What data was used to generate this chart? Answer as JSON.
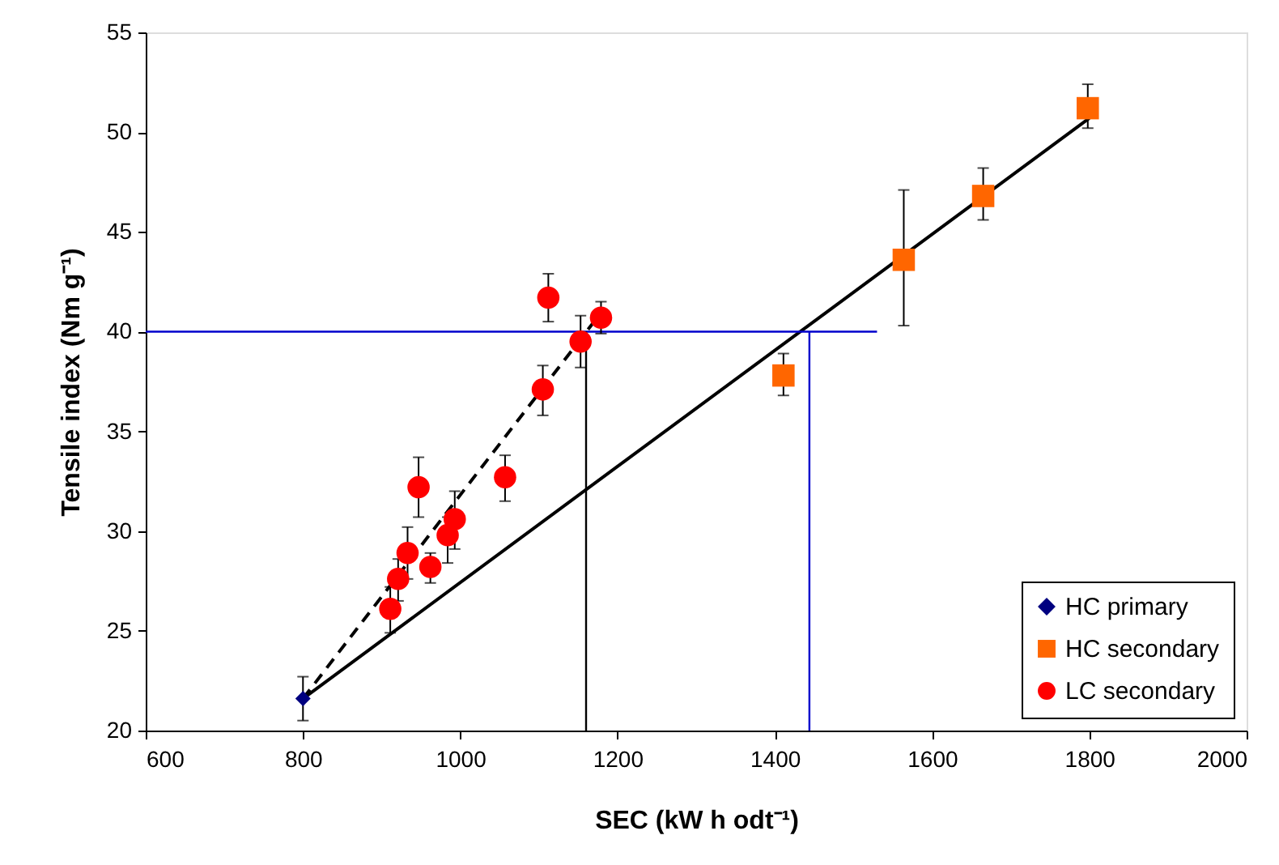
{
  "chart_data": {
    "type": "scatter",
    "xlabel": "SEC (kW h odt⁻¹)",
    "ylabel": "Tensile index (Nm g⁻¹)",
    "xlim": [
      600,
      2000
    ],
    "xticks": [
      600,
      800,
      1000,
      1200,
      1400,
      1600,
      1800,
      2000
    ],
    "ylim": [
      20,
      55
    ],
    "yticks": [
      20,
      25,
      30,
      35,
      40,
      45,
      50,
      55
    ],
    "grid": false,
    "legend": "bottom right",
    "series": [
      {
        "name": "HC primary",
        "marker": "diamond",
        "color": "#000080",
        "x": [
          800
        ],
        "values": [
          21.6
        ],
        "errors": [
          [
            20.5,
            22.7
          ]
        ]
      },
      {
        "name": "HC secondary",
        "marker": "square",
        "color": "#ff6600",
        "x": [
          1411,
          1564,
          1665,
          1798
        ],
        "values": [
          37.8,
          43.6,
          46.8,
          51.2
        ],
        "errors": [
          [
            36.8,
            38.9
          ],
          [
            40.3,
            47.1
          ],
          [
            45.6,
            48.2
          ],
          [
            50.2,
            52.4
          ]
        ]
      },
      {
        "name": "LC secondary",
        "marker": "circle",
        "color": "#ff0000",
        "x": [
          911,
          921,
          933,
          947,
          962,
          984,
          993,
          1057,
          1105,
          1112,
          1153,
          1179
        ],
        "values": [
          26.1,
          27.6,
          28.9,
          32.2,
          28.2,
          29.8,
          30.6,
          32.7,
          37.1,
          41.7,
          39.5,
          40.7
        ],
        "errors": [
          [
            24.9,
            27.2
          ],
          [
            26.5,
            28.6
          ],
          [
            27.6,
            30.2
          ],
          [
            30.7,
            33.7
          ],
          [
            27.4,
            28.9
          ],
          [
            28.4,
            30.7
          ],
          [
            29.1,
            32.0
          ],
          [
            31.5,
            33.8
          ],
          [
            35.8,
            38.3
          ],
          [
            40.5,
            42.9
          ],
          [
            38.2,
            40.8
          ],
          [
            39.9,
            41.5
          ]
        ]
      },
      {
        "type": "line",
        "line_style": "dashed",
        "color": "#000000",
        "x": [
          800,
          1180
        ],
        "values": [
          21.6,
          41.0
        ]
      },
      {
        "type": "line",
        "line_style": "solid",
        "color": "#000000",
        "x": [
          800,
          1800
        ],
        "values": [
          21.6,
          50.7
        ]
      },
      {
        "type": "line",
        "line_style": "solid",
        "color": "#0000cc",
        "x": [
          600,
          1530
        ],
        "values": [
          40,
          40
        ]
      },
      {
        "type": "line",
        "line_style": "solid",
        "color": "#0000cc",
        "x": [
          1444,
          1444
        ],
        "values": [
          20,
          40
        ]
      },
      {
        "type": "line",
        "line_style": "solid",
        "color": "#000000",
        "x": [
          1160,
          1160
        ],
        "values": [
          20,
          40
        ]
      }
    ]
  }
}
